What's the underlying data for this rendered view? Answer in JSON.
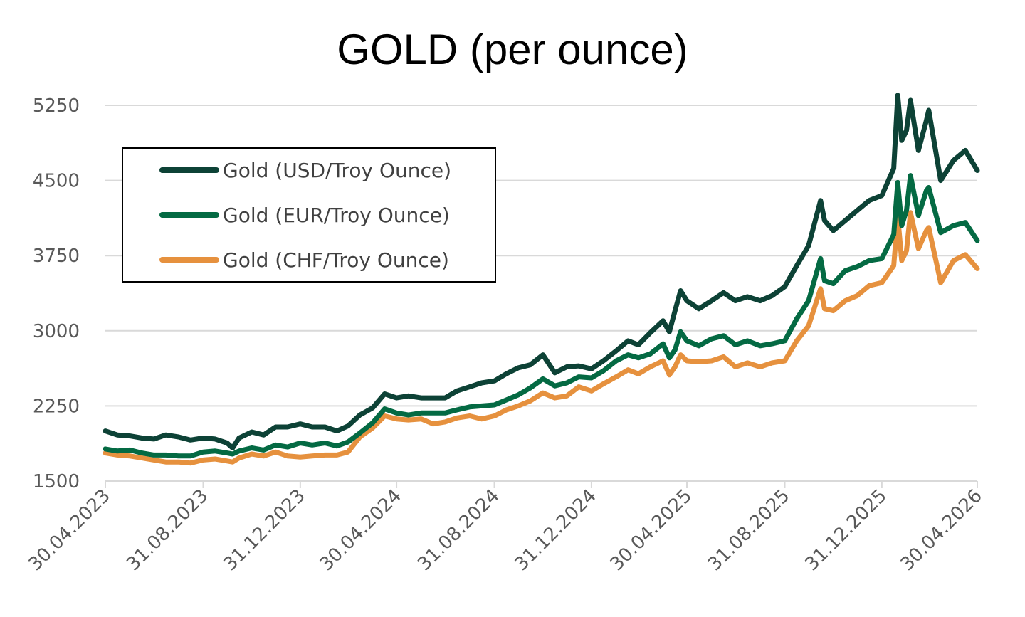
{
  "chart_data": {
    "type": "line",
    "title": "GOLD (per ounce)",
    "xlabel": "",
    "ylabel": "",
    "ylim": [
      1500,
      5250
    ],
    "yticks": [
      "1500",
      "2250",
      "3000",
      "3750",
      "4500",
      "5250"
    ],
    "yticks_values": [
      1500,
      2250,
      3000,
      3750,
      4500,
      5250
    ],
    "xticks": [
      "30.04.2023",
      "31.08.2023",
      "31.12.2023",
      "30.04.2024",
      "31.08.2024",
      "31.12.2024",
      "30.04.2025",
      "31.08.2025",
      "31.12.2025",
      "30.04.2026"
    ],
    "grid": "horizontal",
    "legend_position": "upper-left",
    "x": [
      "30.04.2023",
      "15.05.2023",
      "31.05.2023",
      "15.06.2023",
      "30.06.2023",
      "15.07.2023",
      "31.07.2023",
      "15.08.2023",
      "31.08.2023",
      "15.09.2023",
      "30.09.2023",
      "07.10.2023",
      "15.10.2023",
      "31.10.2023",
      "15.11.2023",
      "30.11.2023",
      "15.12.2023",
      "31.12.2023",
      "15.01.2024",
      "31.01.2024",
      "15.02.2024",
      "29.02.2024",
      "15.03.2024",
      "31.03.2024",
      "15.04.2024",
      "30.04.2024",
      "15.05.2024",
      "31.05.2024",
      "15.06.2024",
      "30.06.2024",
      "15.07.2024",
      "31.07.2024",
      "15.08.2024",
      "31.08.2024",
      "15.09.2024",
      "30.09.2024",
      "15.10.2024",
      "31.10.2024",
      "15.11.2024",
      "30.11.2024",
      "15.12.2024",
      "31.12.2024",
      "15.01.2025",
      "31.01.2025",
      "15.02.2025",
      "28.02.2025",
      "15.03.2025",
      "31.03.2025",
      "08.04.2025",
      "15.04.2025",
      "22.04.2025",
      "30.04.2025",
      "15.05.2025",
      "31.05.2025",
      "15.06.2025",
      "30.06.2025",
      "15.07.2025",
      "31.07.2025",
      "15.08.2025",
      "31.08.2025",
      "15.09.2025",
      "30.09.2025",
      "15.10.2025",
      "20.10.2025",
      "31.10.2025",
      "15.11.2025",
      "30.11.2025",
      "15.12.2025",
      "31.12.2025",
      "15.01.2026",
      "20.01.2026",
      "25.01.2026",
      "31.01.2026",
      "05.02.2026",
      "15.02.2026",
      "25.02.2026",
      "28.02.2026",
      "15.03.2026",
      "31.03.2026",
      "15.04.2026",
      "30.04.2026"
    ],
    "series": [
      {
        "name": "Gold (USD/Troy Ounce)",
        "color": "#0d4236",
        "values": [
          2000,
          1960,
          1950,
          1930,
          1920,
          1960,
          1940,
          1910,
          1930,
          1920,
          1880,
          1830,
          1930,
          1990,
          1960,
          2040,
          2040,
          2070,
          2040,
          2040,
          2000,
          2050,
          2160,
          2230,
          2370,
          2330,
          2350,
          2330,
          2330,
          2330,
          2400,
          2440,
          2480,
          2500,
          2570,
          2630,
          2660,
          2760,
          2580,
          2640,
          2650,
          2620,
          2700,
          2800,
          2900,
          2860,
          2980,
          3100,
          2990,
          3200,
          3400,
          3300,
          3220,
          3300,
          3380,
          3300,
          3340,
          3300,
          3350,
          3440,
          3650,
          3850,
          4300,
          4100,
          4000,
          4100,
          4200,
          4300,
          4350,
          4620,
          5350,
          4900,
          5000,
          5300,
          4800,
          5100,
          5200,
          4500,
          4700,
          4800,
          4600
        ]
      },
      {
        "name": "Gold (EUR/Troy Ounce)",
        "color": "#046a43",
        "values": [
          1820,
          1800,
          1810,
          1780,
          1760,
          1760,
          1750,
          1750,
          1790,
          1800,
          1780,
          1770,
          1800,
          1830,
          1810,
          1860,
          1840,
          1880,
          1860,
          1880,
          1850,
          1890,
          1980,
          2080,
          2220,
          2180,
          2160,
          2180,
          2180,
          2180,
          2210,
          2240,
          2250,
          2260,
          2310,
          2360,
          2430,
          2520,
          2450,
          2480,
          2540,
          2530,
          2600,
          2700,
          2760,
          2730,
          2770,
          2870,
          2730,
          2810,
          2990,
          2900,
          2850,
          2920,
          2950,
          2860,
          2900,
          2850,
          2870,
          2900,
          3120,
          3300,
          3720,
          3500,
          3470,
          3600,
          3640,
          3700,
          3720,
          3960,
          4480,
          4050,
          4200,
          4550,
          4150,
          4400,
          4430,
          3980,
          4050,
          4080,
          3900
        ]
      },
      {
        "name": "Gold (CHF/Troy Ounce)",
        "color": "#e6913e",
        "values": [
          1780,
          1760,
          1750,
          1730,
          1710,
          1690,
          1690,
          1680,
          1710,
          1720,
          1700,
          1690,
          1730,
          1770,
          1750,
          1790,
          1750,
          1740,
          1750,
          1760,
          1760,
          1790,
          1940,
          2030,
          2150,
          2120,
          2110,
          2120,
          2070,
          2090,
          2130,
          2150,
          2120,
          2150,
          2210,
          2250,
          2300,
          2380,
          2330,
          2350,
          2440,
          2400,
          2470,
          2540,
          2610,
          2570,
          2640,
          2700,
          2560,
          2640,
          2760,
          2700,
          2690,
          2700,
          2740,
          2640,
          2680,
          2640,
          2680,
          2700,
          2900,
          3050,
          3420,
          3220,
          3200,
          3300,
          3350,
          3450,
          3480,
          3650,
          4150,
          3700,
          3800,
          4180,
          3820,
          4000,
          4030,
          3480,
          3700,
          3760,
          3620
        ]
      }
    ]
  }
}
